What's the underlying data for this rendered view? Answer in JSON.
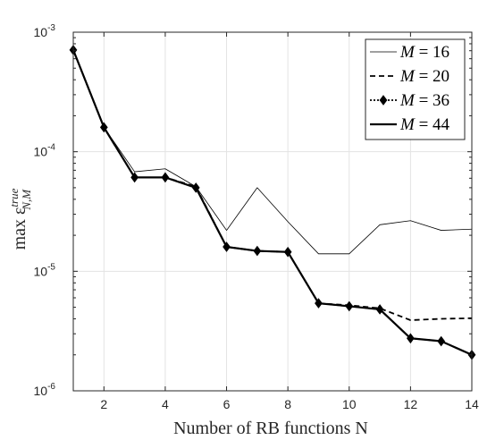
{
  "chart_data": {
    "type": "line",
    "xlabel": "Number of RB functions N",
    "ylabel": "max ε^true_{N,M}",
    "xlim": [
      1,
      14
    ],
    "ylim": [
      1e-06,
      0.001
    ],
    "yscale": "log",
    "grid": true,
    "legend_position": "top-right",
    "x_ticks": [
      "2",
      "4",
      "6",
      "8",
      "10",
      "12",
      "14"
    ],
    "y_ticks": [
      {
        "base": "10",
        "exp": "-3"
      },
      {
        "base": "10",
        "exp": "-4"
      },
      {
        "base": "10",
        "exp": "-5"
      },
      {
        "base": "10",
        "exp": "-6"
      }
    ],
    "x": [
      1,
      2,
      3,
      4,
      5,
      6,
      7,
      8,
      9,
      10,
      11,
      12,
      13,
      14
    ],
    "series": [
      {
        "name": "M = 16",
        "style": "thin-solid",
        "values": [
          0.00071,
          0.00016,
          6.8e-05,
          7.2e-05,
          5.1e-05,
          2.2e-05,
          5e-05,
          2.6e-05,
          1.4e-05,
          1.4e-05,
          2.45e-05,
          2.65e-05,
          2.2e-05,
          2.25e-05
        ]
      },
      {
        "name": "M = 20",
        "style": "dashed",
        "values": [
          0.00071,
          0.00016,
          6.1e-05,
          6.1e-05,
          5.1e-05,
          1.6e-05,
          1.48e-05,
          1.45e-05,
          5.4e-06,
          5.2e-06,
          4.9e-06,
          3.9e-06,
          4e-06,
          4.05e-06
        ]
      },
      {
        "name": "M = 36",
        "style": "dotted-diamond",
        "values": [
          0.00071,
          0.00016,
          6.1e-05,
          6.1e-05,
          5e-05,
          1.6e-05,
          1.48e-05,
          1.45e-05,
          5.4e-06,
          5.1e-06,
          4.8e-06,
          2.75e-06,
          2.6e-06,
          2e-06
        ]
      },
      {
        "name": "M = 44",
        "style": "thick-solid",
        "values": [
          0.00071,
          0.00016,
          6.1e-05,
          6.1e-05,
          5e-05,
          1.6e-05,
          1.48e-05,
          1.45e-05,
          5.4e-06,
          5.1e-06,
          4.8e-06,
          2.75e-06,
          2.6e-06,
          2e-06
        ]
      }
    ],
    "legend": [
      {
        "name": "M",
        "value": "= 16"
      },
      {
        "name": "M",
        "value": "= 20"
      },
      {
        "name": "M",
        "value": "= 36"
      },
      {
        "name": "M",
        "value": "= 44"
      }
    ]
  }
}
